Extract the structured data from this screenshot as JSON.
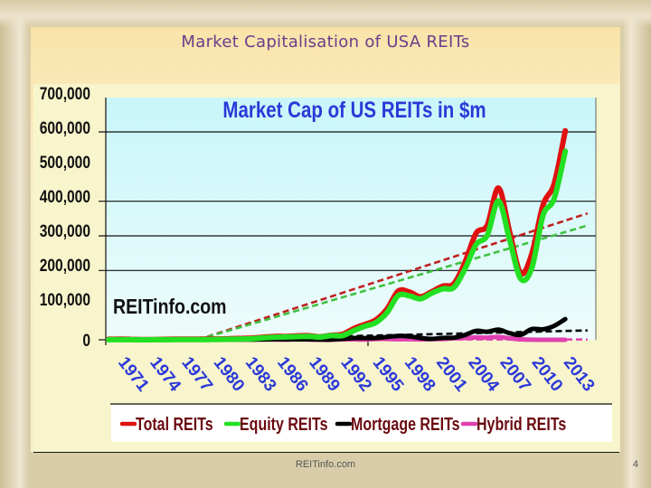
{
  "slide": {
    "title": "Market Capitalisation of USA REITs",
    "footer": "REITinfo.com",
    "page_number": "4"
  },
  "chart": {
    "inner_title": "Market Cap of US REITs in $m",
    "watermark": "REITinfo.com",
    "y_ticks": [
      "700,000",
      "600,000",
      "500,000",
      "400,000",
      "300,000",
      "200,000",
      "100,000",
      "0"
    ],
    "x_ticks": [
      "1971",
      "1974",
      "1977",
      "1980",
      "1983",
      "1986",
      "1989",
      "1992",
      "1995",
      "1998",
      "2001",
      "2004",
      "2007",
      "2010",
      "2013"
    ],
    "legend": [
      {
        "label": "Total REITs",
        "color": "#e01010"
      },
      {
        "label": "Equity REITs",
        "color": "#22e022"
      },
      {
        "label": "Mortgage REITs",
        "color": "#000000"
      },
      {
        "label": "Hybrid REITs",
        "color": "#e040b0"
      }
    ]
  },
  "chart_data": {
    "type": "line",
    "title": "Market Cap of US REITs in $m",
    "xlabel": "",
    "ylabel": "",
    "ylim": [
      0,
      700000
    ],
    "grid": true,
    "legend_position": "bottom",
    "x": [
      1971,
      1972,
      1973,
      1974,
      1975,
      1976,
      1977,
      1978,
      1979,
      1980,
      1981,
      1982,
      1983,
      1984,
      1985,
      1986,
      1987,
      1988,
      1989,
      1990,
      1991,
      1992,
      1993,
      1994,
      1995,
      1996,
      1997,
      1998,
      1999,
      2000,
      2001,
      2002,
      2003,
      2004,
      2005,
      2006,
      2007,
      2008,
      2009,
      2010,
      2011,
      2012
    ],
    "series": [
      {
        "name": "Total REITs",
        "color": "#e01010",
        "values": [
          1500,
          1900,
          1400,
          700,
          900,
          1300,
          1800,
          2000,
          2200,
          2300,
          2400,
          3300,
          4300,
          5100,
          7700,
          9900,
          9700,
          11400,
          11700,
          8700,
          13000,
          15900,
          32200,
          44300,
          57500,
          88800,
          140500,
          138300,
          124300,
          138700,
          154900,
          161900,
          224200,
          307900,
          330700,
          438100,
          312000,
          191700,
          248400,
          389300,
          450500,
          603400
        ]
      },
      {
        "name": "Equity REITs",
        "color": "#22e022",
        "values": [
          300,
          300,
          200,
          100,
          200,
          300,
          400,
          600,
          700,
          900,
          1100,
          1500,
          2400,
          3300,
          5700,
          7500,
          8000,
          9100,
          9800,
          7800,
          12100,
          12000,
          26100,
          38800,
          49900,
          78300,
          127800,
          126900,
          118200,
          134400,
          147100,
          151300,
          204800,
          275300,
          301500,
          400700,
          288700,
          176200,
          207200,
          358900,
          407500,
          544400
        ]
      },
      {
        "name": "Mortgage REITs",
        "color": "#000000",
        "values": [
          700,
          900,
          700,
          200,
          300,
          400,
          600,
          500,
          500,
          500,
          500,
          600,
          700,
          800,
          1200,
          1500,
          1400,
          1300,
          1300,
          600,
          700,
          2700,
          4900,
          4900,
          5300,
          8100,
          11200,
          9700,
          5100,
          2600,
          5600,
          6100,
          14200,
          25900,
          23300,
          29200,
          19100,
          14300,
          31000,
          30300,
          40200,
          59800
        ]
      },
      {
        "name": "Hybrid REITs",
        "color": "#e040b0",
        "values": [
          500,
          700,
          500,
          400,
          400,
          600,
          800,
          900,
          1000,
          900,
          800,
          1200,
          1200,
          1000,
          800,
          900,
          300,
          2000,
          700,
          300,
          200,
          1200,
          1200,
          600,
          2300,
          2400,
          1500,
          1700,
          1000,
          1700,
          2200,
          4400,
          5200,
          6700,
          5900,
          8200,
          4200,
          1200,
          200,
          100,
          0,
          0
        ]
      },
      {
        "name": "Total REITs trend",
        "color": "#c02020",
        "dashed": true,
        "values_endpoints": {
          "1979": 0,
          "2014": 365000
        }
      },
      {
        "name": "Equity REITs trend",
        "color": "#40c040",
        "dashed": true,
        "values_endpoints": {
          "1979": 0,
          "2014": 330000
        }
      },
      {
        "name": "Mortgage REITs trend",
        "color": "#000000",
        "dashed": true,
        "values_endpoints": {
          "1979": 0,
          "2014": 27000
        }
      },
      {
        "name": "Hybrid REITs trend",
        "color": "#e040b0",
        "dashed": true,
        "values_endpoints": {
          "1971": 1000,
          "2014": 1000
        }
      }
    ]
  }
}
